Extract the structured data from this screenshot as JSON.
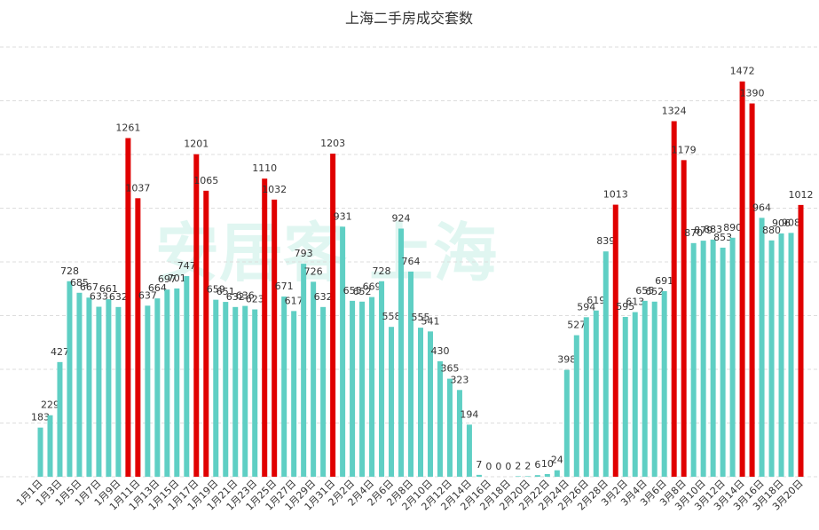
{
  "chart_data": {
    "type": "bar",
    "title": "上海二手房成交套数",
    "watermark": "安居客 上海",
    "categories": [
      "1月1日",
      null,
      "1月3日",
      null,
      "1月5日",
      null,
      "1月7日",
      null,
      "1月9日",
      null,
      "1月11日",
      null,
      "1月13日",
      null,
      "1月15日",
      null,
      "1月17日",
      null,
      "1月19日",
      null,
      "1月21日",
      null,
      "1月23日",
      null,
      "1月25日",
      null,
      "1月27日",
      null,
      "1月29日",
      null,
      "1月31日",
      null,
      "2月2日",
      null,
      "2月4日",
      null,
      "2月6日",
      null,
      "2月8日",
      null,
      "2月10日",
      null,
      "2月12日",
      null,
      "2月14日",
      null,
      "2月16日",
      null,
      "2月18日",
      null,
      "2月20日",
      null,
      "2月22日",
      null,
      "2月24日",
      null,
      "2月26日",
      null,
      "2月28日",
      null,
      "3月2日",
      null,
      "3月4日",
      null,
      "3月6日",
      null,
      "3月8日",
      null,
      "3月10日",
      null,
      "3月12日",
      null,
      "3月14日",
      null,
      "3月16日",
      null,
      "3月18日",
      null,
      "3月20日"
    ],
    "values": [
      183,
      229,
      427,
      728,
      685,
      667,
      633,
      661,
      632,
      1261,
      1037,
      637,
      664,
      697,
      701,
      747,
      1201,
      1065,
      659,
      651,
      632,
      636,
      623,
      1110,
      1032,
      671,
      617,
      793,
      726,
      632,
      1203,
      931,
      655,
      652,
      669,
      728,
      558,
      924,
      764,
      555,
      541,
      430,
      365,
      323,
      194,
      7,
      0,
      0,
      0,
      2,
      2,
      6,
      10,
      24,
      398,
      527,
      594,
      619,
      839,
      1013,
      595,
      613,
      655,
      652,
      691,
      1324,
      1179,
      870,
      879,
      883,
      853,
      890,
      1472,
      1390,
      964,
      880,
      906,
      908,
      1012
    ],
    "colors": [
      "#5fcfc4",
      "#5fcfc4",
      "#5fcfc4",
      "#5fcfc4",
      "#5fcfc4",
      "#5fcfc4",
      "#5fcfc4",
      "#5fcfc4",
      "#5fcfc4",
      "#e00000",
      "#e00000",
      "#5fcfc4",
      "#5fcfc4",
      "#5fcfc4",
      "#5fcfc4",
      "#5fcfc4",
      "#e00000",
      "#e00000",
      "#5fcfc4",
      "#5fcfc4",
      "#5fcfc4",
      "#5fcfc4",
      "#5fcfc4",
      "#e00000",
      "#e00000",
      "#5fcfc4",
      "#5fcfc4",
      "#5fcfc4",
      "#5fcfc4",
      "#5fcfc4",
      "#e00000",
      "#5fcfc4",
      "#5fcfc4",
      "#5fcfc4",
      "#5fcfc4",
      "#5fcfc4",
      "#5fcfc4",
      "#5fcfc4",
      "#5fcfc4",
      "#5fcfc4",
      "#5fcfc4",
      "#5fcfc4",
      "#5fcfc4",
      "#5fcfc4",
      "#5fcfc4",
      "#5fcfc4",
      "#5fcfc4",
      "#5fcfc4",
      "#5fcfc4",
      "#5fcfc4",
      "#5fcfc4",
      "#5fcfc4",
      "#5fcfc4",
      "#5fcfc4",
      "#5fcfc4",
      "#5fcfc4",
      "#5fcfc4",
      "#5fcfc4",
      "#5fcfc4",
      "#e00000",
      "#5fcfc4",
      "#5fcfc4",
      "#5fcfc4",
      "#5fcfc4",
      "#5fcfc4",
      "#e00000",
      "#e00000",
      "#5fcfc4",
      "#5fcfc4",
      "#5fcfc4",
      "#5fcfc4",
      "#5fcfc4",
      "#e00000",
      "#e00000",
      "#5fcfc4",
      "#5fcfc4",
      "#5fcfc4",
      "#5fcfc4",
      "#e00000"
    ],
    "ylim": [
      0,
      1600
    ],
    "yticks": [
      0,
      200,
      400,
      600,
      800,
      1000,
      1200,
      1400,
      1600
    ],
    "grid": true
  }
}
